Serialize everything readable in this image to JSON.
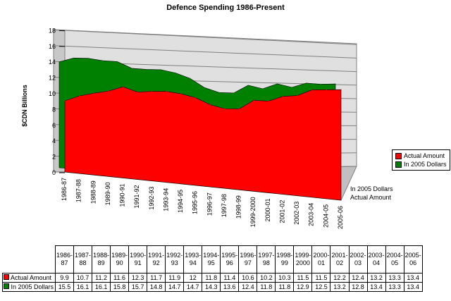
{
  "chart_data": {
    "type": "area",
    "title": "Defence Spending 1986-Present",
    "ylabel": "$CDN Billions",
    "xlabel": "",
    "ylim": [
      0,
      18
    ],
    "yticks": [
      "0",
      "2",
      "4",
      "6",
      "8",
      "10",
      "12",
      "14",
      "16",
      "18"
    ],
    "categories": [
      "1986-87",
      "1987-88",
      "1988-89",
      "1989-90",
      "1990-91",
      "1991-92",
      "1992-93",
      "1993-94",
      "1994-95",
      "1995-96",
      "1996-97",
      "1997-98",
      "1998-99",
      "1999-2000",
      "2000-01",
      "2001-02",
      "2002-03",
      "2003-04",
      "2004-05",
      "2005-06"
    ],
    "table_headers": [
      [
        "1986-",
        "87"
      ],
      [
        "1987-",
        "88"
      ],
      [
        "1988-",
        "89"
      ],
      [
        "1989-",
        "90"
      ],
      [
        "1990-",
        "91"
      ],
      [
        "1991-",
        "92"
      ],
      [
        "1992-",
        "93"
      ],
      [
        "1993-",
        "94"
      ],
      [
        "1994-",
        "95"
      ],
      [
        "1995-",
        "96"
      ],
      [
        "1996-",
        "97"
      ],
      [
        "1997-",
        "98"
      ],
      [
        "1998-",
        "99"
      ],
      [
        "1999-",
        "2000"
      ],
      [
        "2000-",
        "01"
      ],
      [
        "2001-",
        "02"
      ],
      [
        "2002-",
        "03"
      ],
      [
        "2003-",
        "04"
      ],
      [
        "2004-",
        "05"
      ],
      [
        "2005-",
        "06"
      ]
    ],
    "series": [
      {
        "name": "Actual Amount",
        "color": "#ff0000",
        "values": [
          9.9,
          10.7,
          11.2,
          11.6,
          12.3,
          11.7,
          11.9,
          12,
          11.8,
          11.4,
          10.6,
          10.2,
          10.3,
          11.5,
          11.5,
          12.2,
          12.4,
          13.2,
          13.3,
          13.4
        ]
      },
      {
        "name": "In 2005 Dollars",
        "color": "#008000",
        "values": [
          15.5,
          16.1,
          16.1,
          15.8,
          15.7,
          14.8,
          14.7,
          14.7,
          14.3,
          13.6,
          12.4,
          11.8,
          11.8,
          12.9,
          12.5,
          13.2,
          12.8,
          13.4,
          13.3,
          13.4
        ]
      }
    ],
    "depth_labels": [
      "In 2005 Dollars",
      "Actual Amount"
    ],
    "legend_position": "right",
    "grid": true
  }
}
